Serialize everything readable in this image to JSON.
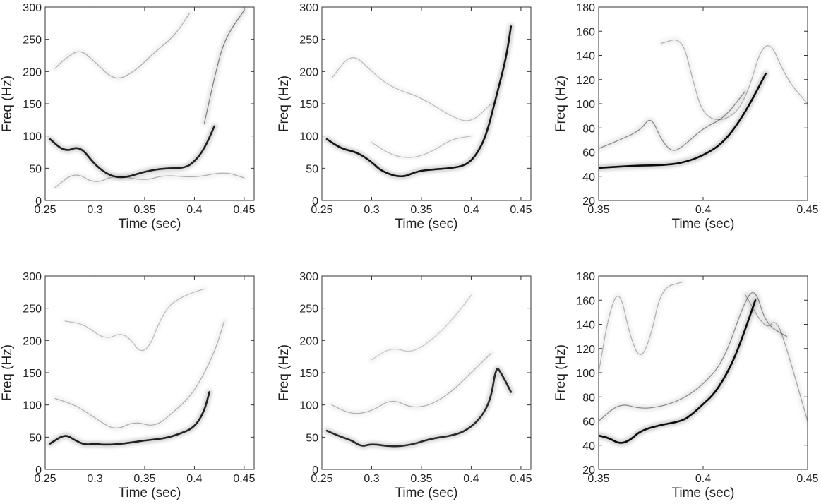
{
  "chart_data": [
    {
      "type": "heatmap",
      "panel": "top-left",
      "colormap": "grayscale (white = low, black = high)",
      "xlabel": "Time (sec)",
      "ylabel": "Freq (Hz)",
      "xlim": [
        0.25,
        0.46
      ],
      "ylim": [
        0,
        300
      ],
      "xticks": [
        0.25,
        0.3,
        0.35,
        0.4,
        0.45
      ],
      "xtick_labels": [
        "0.25",
        "0.3",
        "0.35",
        "0.4",
        "0.45"
      ],
      "yticks": [
        0,
        50,
        100,
        150,
        200,
        250,
        300
      ],
      "ytick_labels": [
        "0",
        "50",
        "100",
        "150",
        "200",
        "250",
        "300"
      ],
      "grid": false,
      "ridges": [
        {
          "points": [
            [
              0.255,
              95
            ],
            [
              0.27,
              75
            ],
            [
              0.285,
              85
            ],
            [
              0.3,
              55
            ],
            [
              0.315,
              38
            ],
            [
              0.33,
              35
            ],
            [
              0.35,
              45
            ],
            [
              0.37,
              50
            ],
            [
              0.39,
              50
            ],
            [
              0.4,
              60
            ],
            [
              0.41,
              80
            ],
            [
              0.42,
              115
            ]
          ],
          "intensity": 0.9
        },
        {
          "points": [
            [
              0.26,
              205
            ],
            [
              0.27,
              220
            ],
            [
              0.285,
              235
            ],
            [
              0.3,
              215
            ],
            [
              0.32,
              185
            ],
            [
              0.34,
              200
            ],
            [
              0.36,
              230
            ],
            [
              0.38,
              255
            ],
            [
              0.395,
              290
            ]
          ],
          "intensity": 0.3
        },
        {
          "points": [
            [
              0.26,
              20
            ],
            [
              0.28,
              45
            ],
            [
              0.3,
              25
            ],
            [
              0.32,
              40
            ],
            [
              0.35,
              30
            ],
            [
              0.37,
              40
            ],
            [
              0.4,
              35
            ],
            [
              0.43,
              45
            ],
            [
              0.45,
              35
            ]
          ],
          "intensity": 0.3
        },
        {
          "points": [
            [
              0.41,
              120
            ],
            [
              0.42,
              190
            ],
            [
              0.43,
              250
            ],
            [
              0.45,
              295
            ]
          ],
          "intensity": 0.5
        }
      ]
    },
    {
      "type": "heatmap",
      "panel": "top-middle",
      "colormap": "grayscale (white = low, black = high)",
      "xlabel": "Time (sec)",
      "ylabel": "Freq (Hz)",
      "xlim": [
        0.25,
        0.46
      ],
      "ylim": [
        0,
        300
      ],
      "xticks": [
        0.25,
        0.3,
        0.35,
        0.4,
        0.45
      ],
      "xtick_labels": [
        "0.25",
        "0.3",
        "0.35",
        "0.4",
        "0.45"
      ],
      "yticks": [
        0,
        50,
        100,
        150,
        200,
        250,
        300
      ],
      "ytick_labels": [
        "0",
        "50",
        "100",
        "150",
        "200",
        "250",
        "300"
      ],
      "grid": false,
      "ridges": [
        {
          "points": [
            [
              0.255,
              95
            ],
            [
              0.27,
              80
            ],
            [
              0.285,
              75
            ],
            [
              0.3,
              60
            ],
            [
              0.31,
              45
            ],
            [
              0.33,
              35
            ],
            [
              0.345,
              45
            ],
            [
              0.36,
              48
            ],
            [
              0.38,
              50
            ],
            [
              0.395,
              55
            ],
            [
              0.405,
              70
            ],
            [
              0.415,
              100
            ],
            [
              0.425,
              160
            ],
            [
              0.435,
              220
            ],
            [
              0.44,
              270
            ]
          ],
          "intensity": 0.95
        },
        {
          "points": [
            [
              0.26,
              190
            ],
            [
              0.28,
              230
            ],
            [
              0.3,
              200
            ],
            [
              0.32,
              175
            ],
            [
              0.35,
              160
            ],
            [
              0.38,
              130
            ],
            [
              0.4,
              120
            ],
            [
              0.42,
              150
            ]
          ],
          "intensity": 0.25
        },
        {
          "points": [
            [
              0.3,
              90
            ],
            [
              0.32,
              70
            ],
            [
              0.34,
              65
            ],
            [
              0.36,
              75
            ],
            [
              0.38,
              95
            ],
            [
              0.4,
              100
            ]
          ],
          "intensity": 0.25
        }
      ]
    },
    {
      "type": "heatmap",
      "panel": "top-right",
      "colormap": "grayscale (white = low, black = high)",
      "xlabel": "Time (sec)",
      "ylabel": "Freq (Hz)",
      "xlim": [
        0.35,
        0.45
      ],
      "ylim": [
        20,
        180
      ],
      "xticks": [
        0.35,
        0.4,
        0.45
      ],
      "xtick_labels": [
        "0.35",
        "0.4",
        "0.45"
      ],
      "yticks": [
        20,
        40,
        60,
        80,
        100,
        120,
        140,
        160,
        180
      ],
      "ytick_labels": [
        "20",
        "40",
        "60",
        "80",
        "100",
        "120",
        "140",
        "160",
        "180"
      ],
      "grid": false,
      "ridges": [
        {
          "points": [
            [
              0.35,
              47
            ],
            [
              0.36,
              48
            ],
            [
              0.37,
              49
            ],
            [
              0.38,
              49
            ],
            [
              0.39,
              51
            ],
            [
              0.4,
              57
            ],
            [
              0.41,
              68
            ],
            [
              0.42,
              92
            ],
            [
              0.43,
              125
            ]
          ],
          "intensity": 1.0
        },
        {
          "points": [
            [
              0.35,
              63
            ],
            [
              0.36,
              70
            ],
            [
              0.37,
              78
            ],
            [
              0.375,
              90
            ],
            [
              0.38,
              70
            ],
            [
              0.385,
              60
            ],
            [
              0.39,
              64
            ],
            [
              0.4,
              80
            ],
            [
              0.41,
              88
            ],
            [
              0.42,
              110
            ]
          ],
          "intensity": 0.45
        },
        {
          "points": [
            [
              0.38,
              150
            ],
            [
              0.39,
              155
            ],
            [
              0.395,
              120
            ],
            [
              0.4,
              90
            ],
            [
              0.41,
              85
            ],
            [
              0.42,
              100
            ],
            [
              0.43,
              160
            ],
            [
              0.44,
              120
            ],
            [
              0.45,
              100
            ]
          ],
          "intensity": 0.3
        }
      ]
    },
    {
      "type": "heatmap",
      "panel": "bottom-left",
      "colormap": "grayscale (white = low, black = high)",
      "xlabel": "Time (sec)",
      "ylabel": "Freq (Hz)",
      "xlim": [
        0.25,
        0.46
      ],
      "ylim": [
        0,
        300
      ],
      "xticks": [
        0.25,
        0.3,
        0.35,
        0.4,
        0.45
      ],
      "xtick_labels": [
        "0.25",
        "0.3",
        "0.35",
        "0.4",
        "0.45"
      ],
      "yticks": [
        0,
        50,
        100,
        150,
        200,
        250,
        300
      ],
      "ytick_labels": [
        "0",
        "50",
        "100",
        "150",
        "200",
        "250",
        "300"
      ],
      "grid": false,
      "ridges": [
        {
          "points": [
            [
              0.255,
              40
            ],
            [
              0.27,
              55
            ],
            [
              0.28,
              45
            ],
            [
              0.29,
              38
            ],
            [
              0.3,
              40
            ],
            [
              0.31,
              38
            ],
            [
              0.33,
              40
            ],
            [
              0.35,
              45
            ],
            [
              0.37,
              48
            ],
            [
              0.385,
              55
            ],
            [
              0.4,
              65
            ],
            [
              0.41,
              90
            ],
            [
              0.415,
              120
            ]
          ],
          "intensity": 0.9
        },
        {
          "points": [
            [
              0.26,
              110
            ],
            [
              0.28,
              100
            ],
            [
              0.3,
              80
            ],
            [
              0.32,
              60
            ],
            [
              0.34,
              75
            ],
            [
              0.36,
              65
            ],
            [
              0.38,
              90
            ],
            [
              0.4,
              120
            ],
            [
              0.42,
              180
            ],
            [
              0.43,
              230
            ]
          ],
          "intensity": 0.3
        },
        {
          "points": [
            [
              0.27,
              230
            ],
            [
              0.29,
              225
            ],
            [
              0.31,
              200
            ],
            [
              0.33,
              215
            ],
            [
              0.35,
              170
            ],
            [
              0.37,
              250
            ],
            [
              0.39,
              270
            ],
            [
              0.41,
              280
            ]
          ],
          "intensity": 0.25
        }
      ]
    },
    {
      "type": "heatmap",
      "panel": "bottom-middle",
      "colormap": "grayscale (white = low, black = high)",
      "xlabel": "Time (sec)",
      "ylabel": "Freq (Hz)",
      "xlim": [
        0.25,
        0.46
      ],
      "ylim": [
        0,
        300
      ],
      "xticks": [
        0.25,
        0.3,
        0.35,
        0.4,
        0.45
      ],
      "xtick_labels": [
        "0.25",
        "0.3",
        "0.35",
        "0.4",
        "0.45"
      ],
      "yticks": [
        0,
        50,
        100,
        150,
        200,
        250,
        300
      ],
      "ytick_labels": [
        "0",
        "50",
        "100",
        "150",
        "200",
        "250",
        "300"
      ],
      "grid": false,
      "ridges": [
        {
          "points": [
            [
              0.255,
              60
            ],
            [
              0.27,
              50
            ],
            [
              0.28,
              45
            ],
            [
              0.29,
              35
            ],
            [
              0.3,
              40
            ],
            [
              0.32,
              35
            ],
            [
              0.34,
              38
            ],
            [
              0.36,
              48
            ],
            [
              0.38,
              52
            ],
            [
              0.395,
              60
            ],
            [
              0.41,
              80
            ],
            [
              0.42,
              110
            ],
            [
              0.425,
              160
            ],
            [
              0.43,
              150
            ],
            [
              0.44,
              120
            ]
          ],
          "intensity": 0.85
        },
        {
          "points": [
            [
              0.26,
              100
            ],
            [
              0.28,
              85
            ],
            [
              0.3,
              90
            ],
            [
              0.32,
              110
            ],
            [
              0.34,
              95
            ],
            [
              0.36,
              100
            ],
            [
              0.38,
              120
            ],
            [
              0.4,
              150
            ],
            [
              0.42,
              180
            ]
          ],
          "intensity": 0.3
        },
        {
          "points": [
            [
              0.3,
              170
            ],
            [
              0.32,
              190
            ],
            [
              0.34,
              180
            ],
            [
              0.36,
              200
            ],
            [
              0.38,
              230
            ],
            [
              0.4,
              270
            ]
          ],
          "intensity": 0.2
        }
      ]
    },
    {
      "type": "heatmap",
      "panel": "bottom-right",
      "colormap": "grayscale (white = low, black = high)",
      "xlabel": "Time (sec)",
      "ylabel": "Freq (Hz)",
      "xlim": [
        0.35,
        0.45
      ],
      "ylim": [
        20,
        180
      ],
      "xticks": [
        0.35,
        0.4,
        0.45
      ],
      "xtick_labels": [
        "0.35",
        "0.4",
        "0.45"
      ],
      "yticks": [
        20,
        40,
        60,
        80,
        100,
        120,
        140,
        160,
        180
      ],
      "ytick_labels": [
        "20",
        "40",
        "60",
        "80",
        "100",
        "120",
        "140",
        "160",
        "180"
      ],
      "grid": false,
      "ridges": [
        {
          "points": [
            [
              0.35,
              48
            ],
            [
              0.355,
              46
            ],
            [
              0.36,
              41
            ],
            [
              0.365,
              44
            ],
            [
              0.37,
              52
            ],
            [
              0.38,
              57
            ],
            [
              0.39,
              60
            ],
            [
              0.395,
              66
            ],
            [
              0.4,
              74
            ],
            [
              0.405,
              82
            ],
            [
              0.41,
              95
            ],
            [
              0.415,
              112
            ],
            [
              0.42,
              135
            ],
            [
              0.425,
              160
            ]
          ],
          "intensity": 1.0
        },
        {
          "points": [
            [
              0.35,
              60
            ],
            [
              0.36,
              75
            ],
            [
              0.37,
              70
            ],
            [
              0.38,
              72
            ],
            [
              0.39,
              78
            ],
            [
              0.4,
              90
            ],
            [
              0.41,
              110
            ],
            [
              0.42,
              160
            ],
            [
              0.425,
              170
            ],
            [
              0.43,
              140
            ],
            [
              0.44,
              130
            ]
          ],
          "intensity": 0.45
        },
        {
          "points": [
            [
              0.35,
              100
            ],
            [
              0.355,
              150
            ],
            [
              0.36,
              170
            ],
            [
              0.365,
              130
            ],
            [
              0.37,
              110
            ],
            [
              0.375,
              130
            ],
            [
              0.38,
              170
            ],
            [
              0.39,
              175
            ]
          ],
          "intensity": 0.3
        },
        {
          "points": [
            [
              0.42,
              165
            ],
            [
              0.43,
              135
            ],
            [
              0.435,
              145
            ],
            [
              0.44,
              120
            ],
            [
              0.445,
              90
            ],
            [
              0.45,
              60
            ]
          ],
          "intensity": 0.35
        }
      ]
    }
  ]
}
